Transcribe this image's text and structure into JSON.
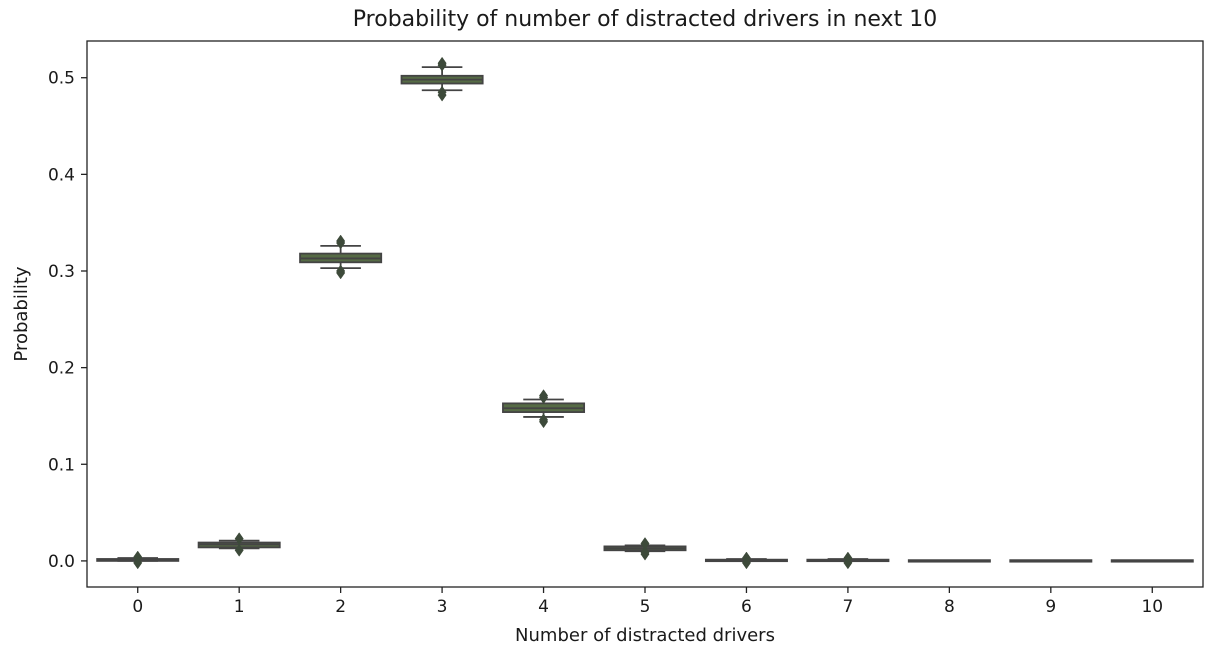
{
  "chart_data": {
    "type": "box",
    "title": "Probability of number of distracted drivers in next 10",
    "xlabel": "Number of distracted drivers",
    "ylabel": "Probability",
    "categories": [
      "0",
      "1",
      "2",
      "3",
      "4",
      "5",
      "6",
      "7",
      "8",
      "9",
      "10"
    ],
    "y_ticks": [
      "0.0",
      "0.1",
      "0.2",
      "0.3",
      "0.4",
      "0.5"
    ],
    "ylim": [
      -0.027,
      0.538
    ],
    "grid": false,
    "box_color": "#566b45",
    "outlier_color": "#3d4a3a",
    "boxes": [
      {
        "category": "0",
        "whislo": 0.0,
        "q1": 0.0,
        "median": 0.001,
        "q3": 0.002,
        "whishi": 0.003,
        "fliers": [
          0.004,
          -0.002
        ]
      },
      {
        "category": "1",
        "whislo": 0.013,
        "q1": 0.014,
        "median": 0.017,
        "q3": 0.019,
        "whishi": 0.021,
        "fliers": [
          0.011,
          0.023
        ]
      },
      {
        "category": "2",
        "whislo": 0.303,
        "q1": 0.309,
        "median": 0.313,
        "q3": 0.318,
        "whishi": 0.326,
        "fliers": [
          0.298,
          0.3,
          0.329,
          0.331
        ]
      },
      {
        "category": "3",
        "whislo": 0.487,
        "q1": 0.494,
        "median": 0.498,
        "q3": 0.502,
        "whishi": 0.511,
        "fliers": [
          0.482,
          0.485,
          0.513,
          0.515
        ]
      },
      {
        "category": "4",
        "whislo": 0.149,
        "q1": 0.154,
        "median": 0.158,
        "q3": 0.163,
        "whishi": 0.167,
        "fliers": [
          0.144,
          0.146,
          0.169,
          0.171
        ]
      },
      {
        "category": "5",
        "whislo": 0.01,
        "q1": 0.011,
        "median": 0.013,
        "q3": 0.015,
        "whishi": 0.016,
        "fliers": [
          0.007,
          0.009,
          0.018
        ]
      },
      {
        "category": "6",
        "whislo": 0.0,
        "q1": 0.0,
        "median": 0.001,
        "q3": 0.001,
        "whishi": 0.002,
        "fliers": [
          0.003,
          -0.002
        ]
      },
      {
        "category": "7",
        "whislo": 0.0,
        "q1": 0.0,
        "median": 0.0,
        "q3": 0.001,
        "whishi": 0.002,
        "fliers": [
          0.003,
          -0.002
        ]
      },
      {
        "category": "8",
        "whislo": 0.0,
        "q1": 0.0,
        "median": 0.0,
        "q3": 0.0,
        "whishi": 0.0,
        "fliers": []
      },
      {
        "category": "9",
        "whislo": 0.0,
        "q1": 0.0,
        "median": 0.0,
        "q3": 0.0,
        "whishi": 0.0,
        "fliers": []
      },
      {
        "category": "10",
        "whislo": 0.0,
        "q1": 0.0,
        "median": 0.0,
        "q3": 0.0,
        "whishi": 0.0,
        "fliers": []
      }
    ]
  }
}
